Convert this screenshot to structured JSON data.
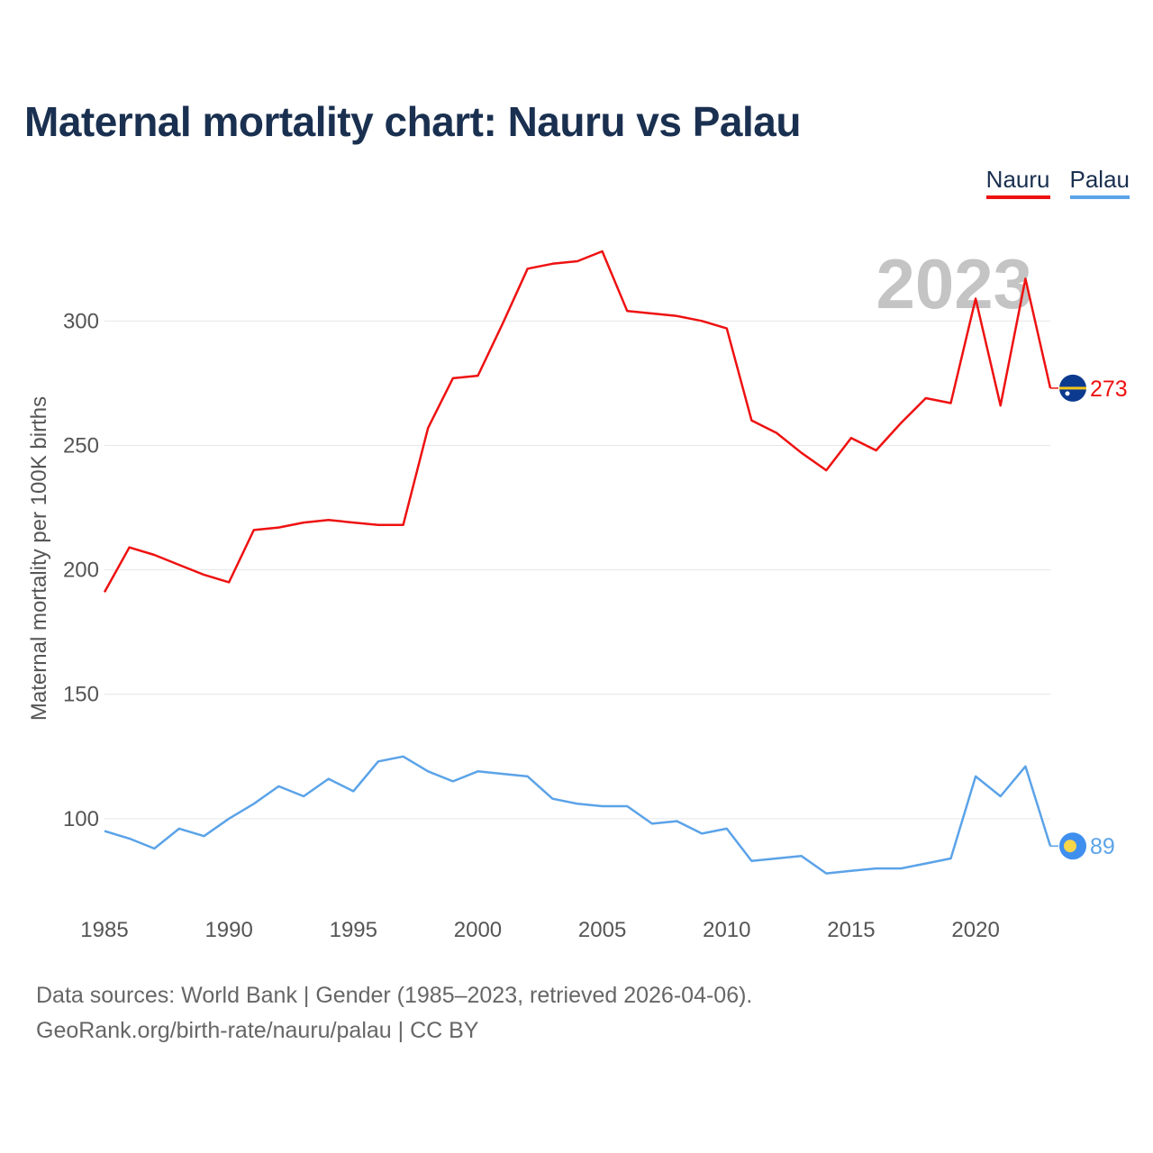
{
  "title": "Maternal mortality chart: Nauru vs Palau",
  "legend": [
    {
      "name": "Nauru",
      "color": "#ee1111"
    },
    {
      "name": "Palau",
      "color": "#5ba3e8"
    }
  ],
  "year_watermark": "2023",
  "footer": {
    "line1": "Data sources: World Bank | Gender (1985–2023, retrieved 2026-04-06).",
    "line2": "GeoRank.org/birth-rate/nauru/palau | CC BY"
  },
  "chart_data": {
    "type": "line",
    "title": "Maternal mortality chart: Nauru vs Palau",
    "xlabel": "",
    "ylabel": "Maternal mortality per 100K births",
    "xlim": [
      1985,
      2023
    ],
    "ylim": [
      67,
      345
    ],
    "x_ticks": [
      1985,
      1990,
      1995,
      2000,
      2005,
      2010,
      2015,
      2020
    ],
    "y_ticks": [
      100,
      150,
      200,
      250,
      300
    ],
    "grid": true,
    "x": [
      1985,
      1986,
      1987,
      1988,
      1989,
      1990,
      1991,
      1992,
      1993,
      1994,
      1995,
      1996,
      1997,
      1998,
      1999,
      2000,
      2001,
      2002,
      2003,
      2004,
      2005,
      2006,
      2007,
      2008,
      2009,
      2010,
      2011,
      2012,
      2013,
      2014,
      2015,
      2016,
      2017,
      2018,
      2019,
      2020,
      2021,
      2022,
      2023
    ],
    "series": [
      {
        "name": "Nauru",
        "color": "#ee1111",
        "values": [
          191,
          209,
          206,
          202,
          198,
          195,
          216,
          217,
          219,
          220,
          219,
          218,
          218,
          257,
          277,
          278,
          299,
          321,
          323,
          324,
          328,
          304,
          303,
          302,
          300,
          297,
          260,
          255,
          247,
          240,
          253,
          248,
          259,
          269,
          267,
          309,
          266,
          317,
          273
        ],
        "end_label": "273",
        "flag_icon": "nauru-flag-icon"
      },
      {
        "name": "Palau",
        "color": "#5ba3e8",
        "values": [
          95,
          92,
          88,
          96,
          93,
          100,
          106,
          113,
          109,
          116,
          111,
          123,
          125,
          119,
          115,
          119,
          118,
          117,
          108,
          106,
          105,
          105,
          98,
          99,
          94,
          96,
          83,
          84,
          85,
          78,
          79,
          80,
          80,
          82,
          84,
          117,
          109,
          121,
          89
        ],
        "end_label": "89",
        "flag_icon": "palau-flag-icon"
      }
    ]
  }
}
